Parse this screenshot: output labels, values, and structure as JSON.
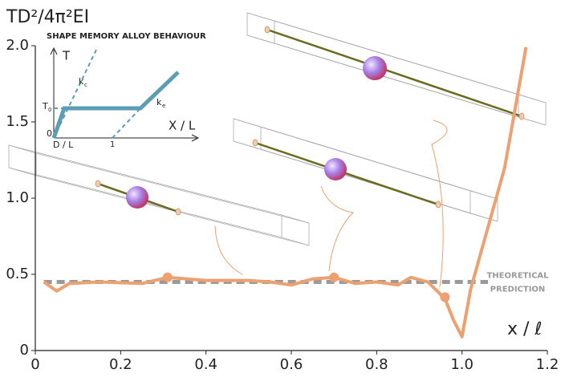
{
  "chart_data": {
    "type": "line",
    "y_label": "TD²/4π²EI",
    "x_label": "x / ℓ",
    "xlim": [
      0,
      1.2
    ],
    "ylim": [
      0,
      2.0
    ],
    "xticks": [
      0,
      0.2,
      0.4,
      0.6,
      0.8,
      {
        "value": 1,
        "label": "1.0"
      },
      1.2
    ],
    "yticks": [
      0,
      0.5,
      {
        "value": 1,
        "label": "1.0"
      },
      1.5,
      {
        "value": 2,
        "label": "2.0"
      }
    ],
    "x": [
      0.02,
      0.05,
      0.08,
      0.15,
      0.25,
      0.31,
      0.4,
      0.5,
      0.55,
      0.6,
      0.65,
      0.7,
      0.75,
      0.8,
      0.85,
      0.88,
      0.92,
      0.96,
      0.98,
      1.0,
      1.02,
      1.1,
      1.15
    ],
    "series": [
      {
        "color": "#eda070",
        "values": [
          0.45,
          0.39,
          0.44,
          0.45,
          0.44,
          0.48,
          0.46,
          0.46,
          0.45,
          0.43,
          0.47,
          0.48,
          0.44,
          0.45,
          0.43,
          0.48,
          0.45,
          0.34,
          0.2,
          0.09,
          0.4,
          1.2,
          1.99
        ]
      }
    ],
    "markers": {
      "x": [
        0.31,
        0.7,
        0.96
      ],
      "values": [
        0.48,
        0.48,
        0.35
      ]
    },
    "theory": {
      "label": [
        "THEORETICAL",
        "PREDICTION"
      ],
      "value": 0.45,
      "color": "#9a9a9a"
    },
    "inset": {
      "title": "SHAPE MEMORY ALLOY BEHAVIOUR",
      "y_label": "T",
      "x_label": "X / L",
      "t0": [
        "T",
        "0"
      ],
      "kc": [
        "k",
        "c"
      ],
      "ke": [
        "k",
        "e"
      ],
      "origin": "0",
      "dl": "D / L",
      "one": "1",
      "color": "#5b9db5"
    }
  }
}
